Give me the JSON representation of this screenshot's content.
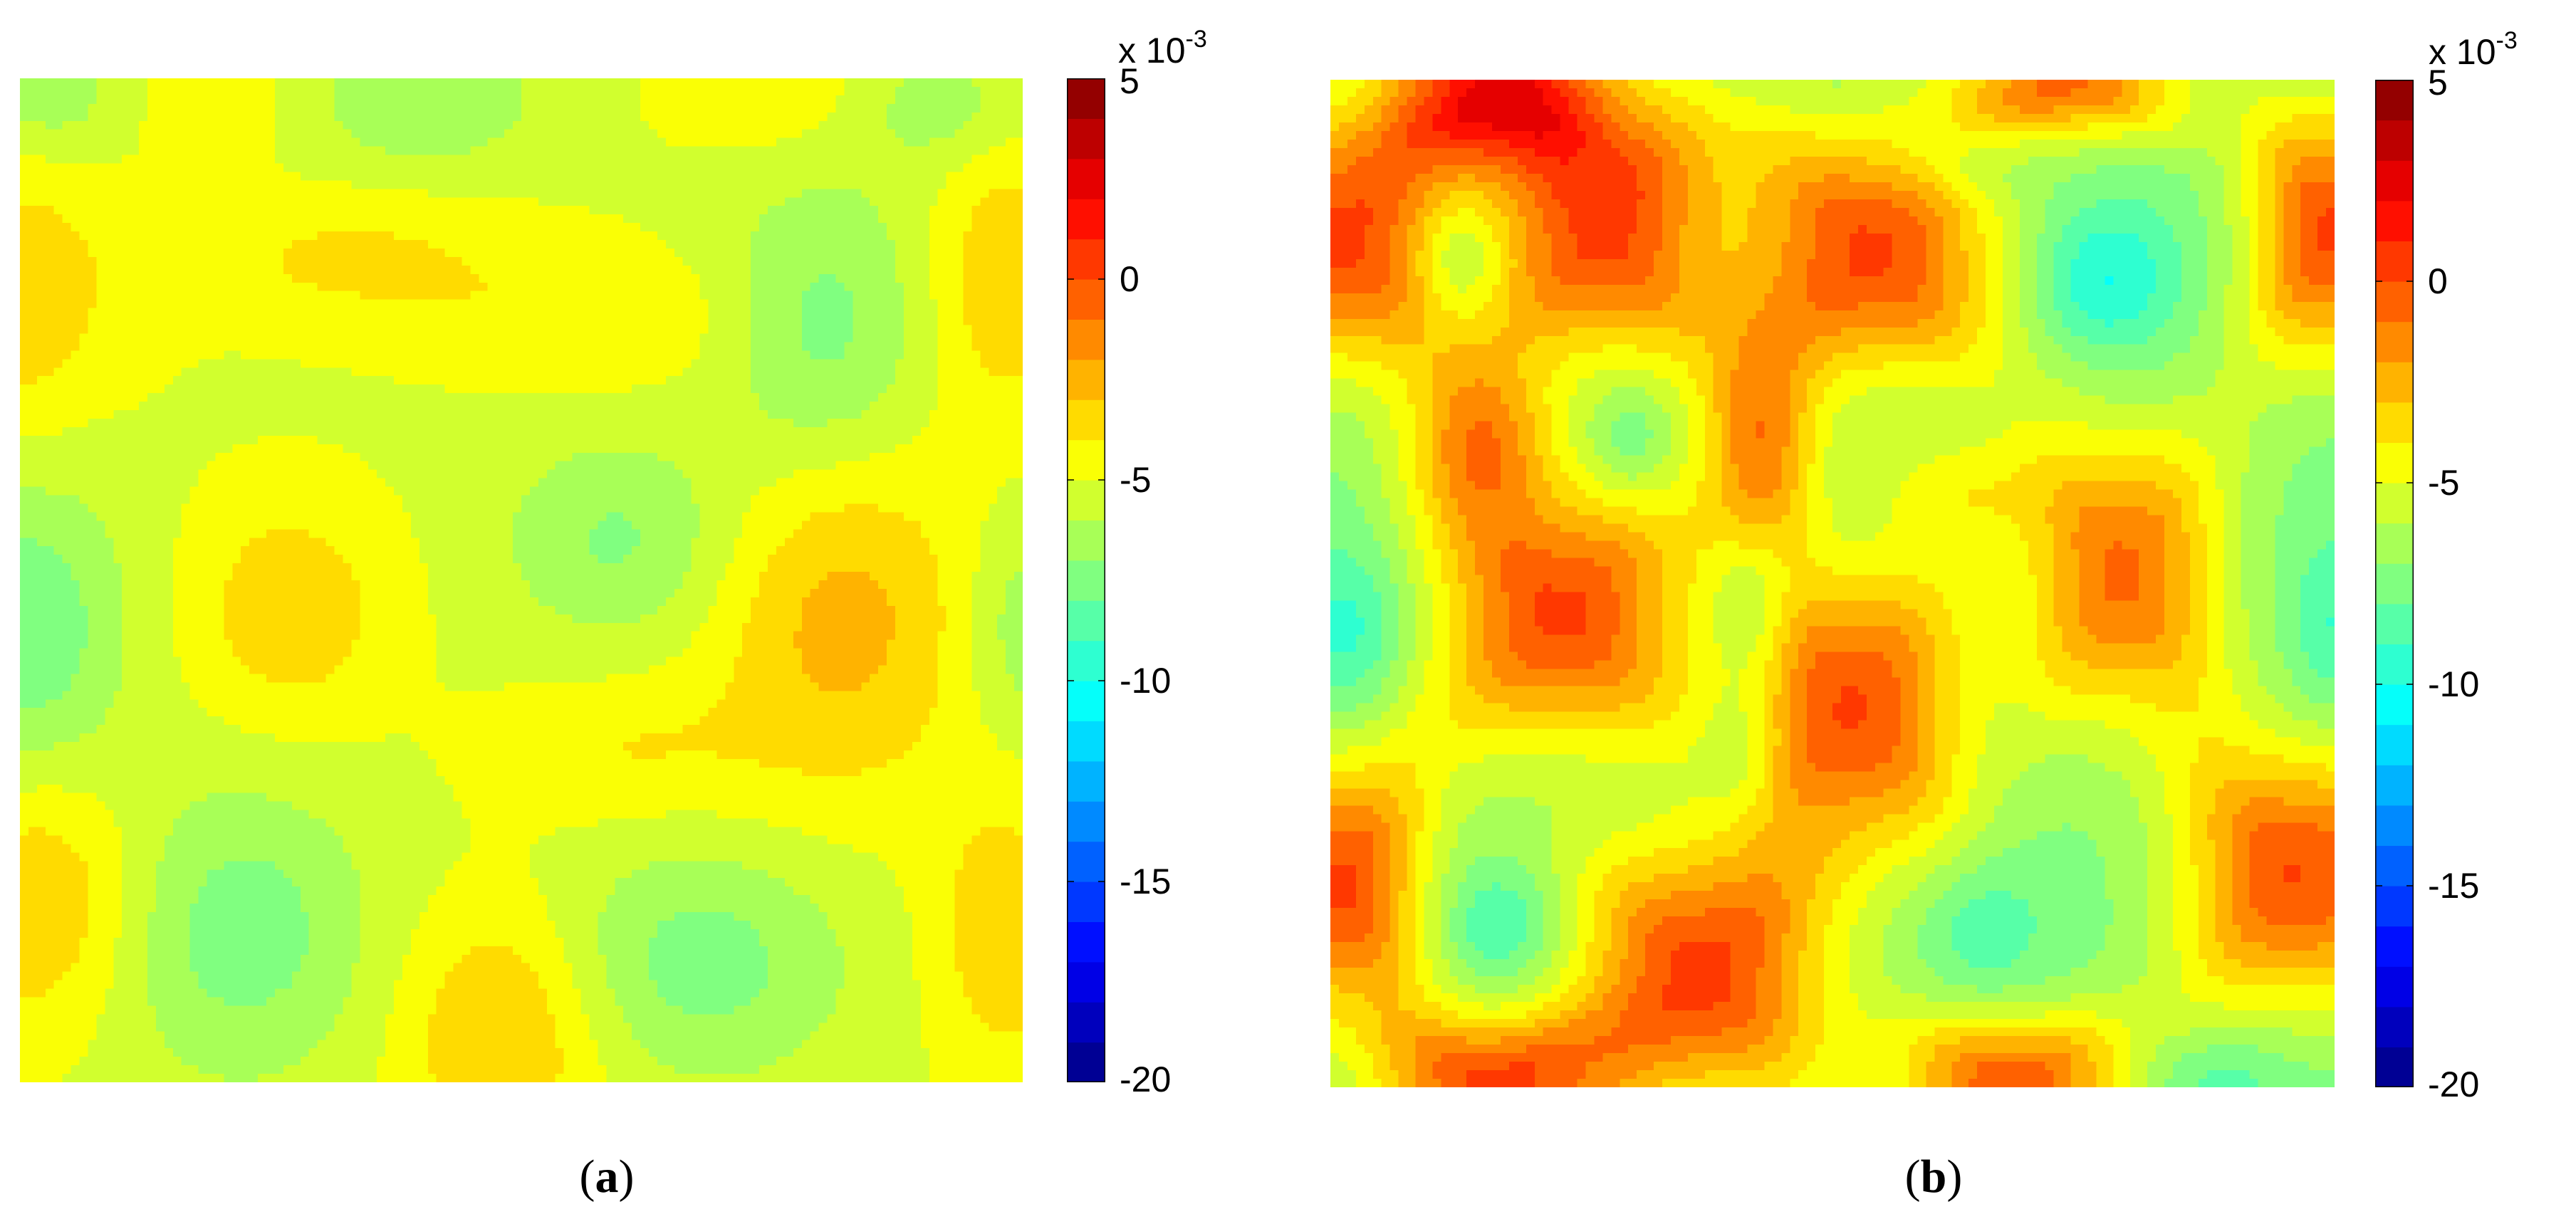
{
  "chart_data": [
    {
      "type": "heatmap",
      "panel_label": "a",
      "colorbar": {
        "ticks": [
          5,
          0,
          -5,
          -10,
          -15,
          -20
        ],
        "tick_labels": [
          "5",
          "0",
          "-5",
          "-10",
          "-15",
          "-20"
        ],
        "range": [
          -20,
          5
        ],
        "levels": 25,
        "multiplier_base": "x 10",
        "multiplier_exponent": "-3",
        "colormap": "jet"
      },
      "field": {
        "base": -5.2,
        "bumps": [
          {
            "x": 0.02,
            "y": 0.22,
            "dv": 2.4,
            "sx": 0.07,
            "sy": 0.1
          },
          {
            "x": 0.02,
            "y": 0.82,
            "dv": 2.3,
            "sx": 0.07,
            "sy": 0.09
          },
          {
            "x": 0.33,
            "y": 0.18,
            "dv": 1.4,
            "sx": 0.12,
            "sy": 0.05
          },
          {
            "x": 0.58,
            "y": 0.24,
            "dv": 1.1,
            "sx": 0.12,
            "sy": 0.05
          },
          {
            "x": 0.27,
            "y": 0.53,
            "dv": 2.0,
            "sx": 0.07,
            "sy": 0.08
          },
          {
            "x": 0.82,
            "y": 0.54,
            "dv": 2.6,
            "sx": 0.09,
            "sy": 0.12
          },
          {
            "x": 0.6,
            "y": 0.67,
            "dv": 1.2,
            "sx": 0.1,
            "sy": 0.05
          },
          {
            "x": 0.48,
            "y": 0.95,
            "dv": 2.4,
            "sx": 0.07,
            "sy": 0.09
          },
          {
            "x": 0.98,
            "y": 0.2,
            "dv": 2.0,
            "sx": 0.05,
            "sy": 0.1
          },
          {
            "x": 0.98,
            "y": 0.85,
            "dv": 2.0,
            "sx": 0.05,
            "sy": 0.1
          },
          {
            "x": 0.75,
            "y": 0.02,
            "dv": 1.0,
            "sx": 0.08,
            "sy": 0.04
          },
          {
            "x": 0.2,
            "y": 0.02,
            "dv": 0.9,
            "sx": 0.06,
            "sy": 0.04
          },
          {
            "x": 0.06,
            "y": 0.24,
            "dv": -0.7,
            "sx": 0.05,
            "sy": 0.12
          },
          {
            "x": 0.4,
            "y": 0.02,
            "dv": -1.8,
            "sx": 0.08,
            "sy": 0.05
          },
          {
            "x": 0.8,
            "y": 0.25,
            "dv": -2.3,
            "sx": 0.07,
            "sy": 0.1
          },
          {
            "x": 0.6,
            "y": 0.46,
            "dv": -2.0,
            "sx": 0.08,
            "sy": 0.07
          },
          {
            "x": 0.0,
            "y": 0.55,
            "dv": -2.8,
            "sx": 0.07,
            "sy": 0.1
          },
          {
            "x": 0.22,
            "y": 0.85,
            "dv": -2.4,
            "sx": 0.09,
            "sy": 0.1
          },
          {
            "x": 0.68,
            "y": 0.88,
            "dv": -2.3,
            "sx": 0.1,
            "sy": 0.08
          },
          {
            "x": 0.92,
            "y": 0.03,
            "dv": -1.5,
            "sx": 0.06,
            "sy": 0.04
          },
          {
            "x": 1.0,
            "y": 0.55,
            "dv": -1.6,
            "sx": 0.04,
            "sy": 0.08
          },
          {
            "x": 0.03,
            "y": 0.02,
            "dv": -1.5,
            "sx": 0.05,
            "sy": 0.04
          }
        ]
      }
    },
    {
      "type": "heatmap",
      "panel_label": "b",
      "colorbar": {
        "ticks": [
          5,
          0,
          -5,
          -10,
          -15,
          -20
        ],
        "tick_labels": [
          "5",
          "0",
          "-5",
          "-10",
          "-15",
          "-20"
        ],
        "range": [
          -20,
          5
        ],
        "levels": 25,
        "multiplier_base": "x 10",
        "multiplier_exponent": "-3",
        "colormap": "jet"
      },
      "field": {
        "base": -7.6,
        "bumps": [
          {
            "x": 0.01,
            "y": 0.16,
            "dv": 7.8,
            "sx": 0.08,
            "sy": 0.09,
            "p": 4
          },
          {
            "x": 0.27,
            "y": 0.15,
            "dv": 7.8,
            "sx": 0.08,
            "sy": 0.09,
            "p": 4
          },
          {
            "x": 0.54,
            "y": 0.17,
            "dv": 7.8,
            "sx": 0.09,
            "sy": 0.09,
            "p": 4
          },
          {
            "x": 1.0,
            "y": 0.15,
            "dv": 7.8,
            "sx": 0.06,
            "sy": 0.09,
            "p": 4
          },
          {
            "x": 0.17,
            "y": 0.01,
            "dv": 7.8,
            "sx": 0.08,
            "sy": 0.05,
            "p": 4
          },
          {
            "x": 0.74,
            "y": 0.0,
            "dv": 6.5,
            "sx": 0.08,
            "sy": 0.04,
            "p": 4
          },
          {
            "x": 0.15,
            "y": 0.36,
            "dv": 4.8,
            "sx": 0.05,
            "sy": 0.06,
            "p": 2
          },
          {
            "x": 0.43,
            "y": 0.37,
            "dv": 5.0,
            "sx": 0.04,
            "sy": 0.08,
            "p": 2
          },
          {
            "x": 0.79,
            "y": 0.49,
            "dv": 6.8,
            "sx": 0.07,
            "sy": 0.1,
            "p": 4
          },
          {
            "x": 0.23,
            "y": 0.53,
            "dv": 7.8,
            "sx": 0.09,
            "sy": 0.09,
            "p": 4
          },
          {
            "x": 0.52,
            "y": 0.62,
            "dv": 7.6,
            "sx": 0.08,
            "sy": 0.1,
            "p": 4
          },
          {
            "x": 0.01,
            "y": 0.8,
            "dv": 7.8,
            "sx": 0.06,
            "sy": 0.09,
            "p": 4
          },
          {
            "x": 0.37,
            "y": 0.89,
            "dv": 7.8,
            "sx": 0.09,
            "sy": 0.09,
            "p": 4
          },
          {
            "x": 0.96,
            "y": 0.79,
            "dv": 7.6,
            "sx": 0.08,
            "sy": 0.09,
            "p": 4
          },
          {
            "x": 0.16,
            "y": 1.0,
            "dv": 7.4,
            "sx": 0.08,
            "sy": 0.05,
            "p": 4
          },
          {
            "x": 0.68,
            "y": 1.0,
            "dv": 7.4,
            "sx": 0.08,
            "sy": 0.05,
            "p": 4
          },
          {
            "x": 0.62,
            "y": 0.41,
            "dv": 2.2,
            "sx": 0.06,
            "sy": 0.04,
            "p": 2
          },
          {
            "x": 0.42,
            "y": 0.52,
            "dv": -2.8,
            "sx": 0.03,
            "sy": 0.05,
            "p": 2
          },
          {
            "x": 0.13,
            "y": 0.18,
            "dv": -2.3,
            "sx": 0.03,
            "sy": 0.04,
            "p": 2
          },
          {
            "x": 0.77,
            "y": 0.2,
            "dv": -2.8,
            "sx": 0.05,
            "sy": 0.05,
            "p": 2
          },
          {
            "x": 0.63,
            "y": 0.08,
            "dv": -2.0,
            "sx": 0.05,
            "sy": 0.03,
            "p": 2
          },
          {
            "x": 0.02,
            "y": 0.55,
            "dv": -2.3,
            "sx": 0.04,
            "sy": 0.06,
            "p": 2
          },
          {
            "x": 0.17,
            "y": 0.84,
            "dv": -2.2,
            "sx": 0.04,
            "sy": 0.04,
            "p": 2
          },
          {
            "x": 0.3,
            "y": 0.36,
            "dv": -1.8,
            "sx": 0.03,
            "sy": 0.04,
            "p": 2
          },
          {
            "x": 0.41,
            "y": 0.67,
            "dv": -1.8,
            "sx": 0.03,
            "sy": 0.05,
            "p": 2
          },
          {
            "x": 0.65,
            "y": 0.84,
            "dv": -1.6,
            "sx": 0.04,
            "sy": 0.05,
            "p": 2
          },
          {
            "x": 1.0,
            "y": 0.55,
            "dv": -1.7,
            "sx": 0.03,
            "sy": 0.06,
            "p": 2
          },
          {
            "x": 0.88,
            "y": 0.99,
            "dv": -1.5,
            "sx": 0.05,
            "sy": 0.03,
            "p": 2
          }
        ]
      }
    }
  ],
  "captions": [
    {
      "open": "(",
      "letter": "a",
      "close": ")"
    },
    {
      "open": "(",
      "letter": "b",
      "close": ")"
    }
  ]
}
